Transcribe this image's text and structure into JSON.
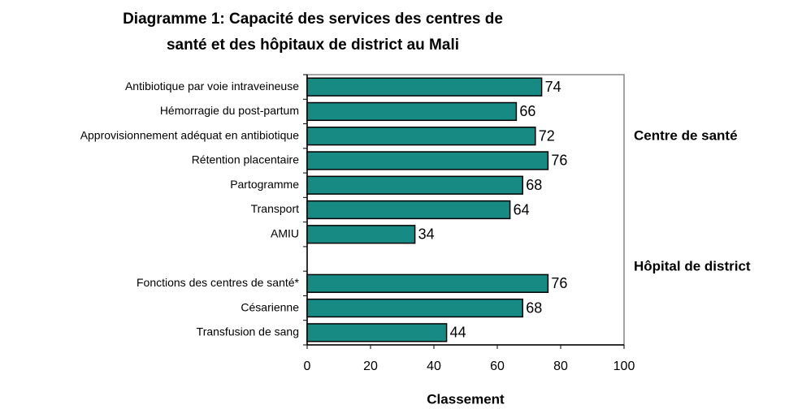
{
  "chart_data": {
    "type": "barh",
    "title": [
      "Diagramme 1: Capacité des services des centres de",
      "santé et des hôpitaux de district au Mali"
    ],
    "x_label": "Classement",
    "annotations": [
      "Centre de santé",
      "Hôpital de district"
    ],
    "categories": [
      "Antibiotique par voie intraveineuse",
      "Hémorragie du post-partum",
      "Approvisionnement adéquat en antibiotique",
      "Rétention placentaire",
      "Partogramme",
      "Transport",
      "AMIU",
      null,
      "Fonctions des centres de santé*",
      "Césarienne",
      "Transfusion de sang"
    ],
    "values": [
      74,
      66,
      72,
      76,
      68,
      64,
      34,
      null,
      76,
      68,
      44
    ],
    "color": "#178a84",
    "xlim": [
      0,
      100
    ],
    "xticks": [
      0,
      20,
      40,
      60,
      80,
      100
    ],
    "grid": false
  }
}
